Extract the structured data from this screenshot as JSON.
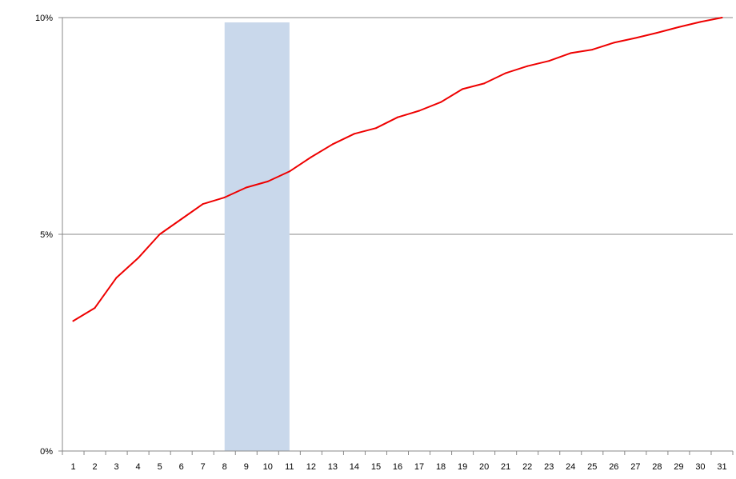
{
  "chart_data": {
    "type": "line",
    "title": "",
    "xlabel": "",
    "ylabel": "",
    "x": [
      1,
      2,
      3,
      4,
      5,
      6,
      7,
      8,
      9,
      10,
      11,
      12,
      13,
      14,
      15,
      16,
      17,
      18,
      19,
      20,
      21,
      22,
      23,
      24,
      25,
      26,
      27,
      28,
      29,
      30,
      31
    ],
    "series": [
      {
        "color": "#ee0000",
        "values": [
          3.0,
          3.3,
          4.0,
          4.45,
          5.0,
          5.35,
          5.7,
          5.85,
          6.08,
          6.22,
          6.45,
          6.78,
          7.08,
          7.32,
          7.45,
          7.7,
          7.85,
          8.05,
          8.35,
          8.48,
          8.72,
          8.88,
          9.0,
          9.18,
          9.26,
          9.42,
          9.53,
          9.65,
          9.78,
          9.9,
          10.0
        ]
      }
    ],
    "y_ticks": [
      0,
      5,
      10
    ],
    "y_tick_labels": [
      "0%",
      "5%",
      "10%"
    ],
    "x_tick_labels": [
      "1",
      "2",
      "3",
      "4",
      "5",
      "6",
      "7",
      "8",
      "9",
      "10",
      "11",
      "12",
      "13",
      "14",
      "15",
      "16",
      "17",
      "18",
      "19",
      "20",
      "21",
      "22",
      "23",
      "24",
      "25",
      "26",
      "27",
      "28",
      "29",
      "30",
      "31"
    ],
    "ylim": [
      0,
      10
    ],
    "grid": "horizontal",
    "legend": "none",
    "highlight": {
      "x_from": 8,
      "x_to": 11,
      "color": "#c9d8eb"
    }
  }
}
